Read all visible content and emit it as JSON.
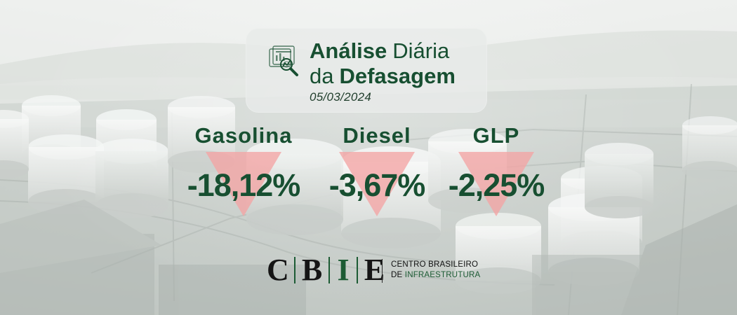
{
  "header": {
    "title_word_1": "Análise",
    "title_word_2": "Diária",
    "title_word_3": "da",
    "title_word_4": "Defasagem",
    "date": "05/03/2024",
    "icon": "analytics-report-icon"
  },
  "metrics": [
    {
      "fuel": "Gasolina",
      "value": "-18,12%",
      "indicator": "down-triangle-icon",
      "color": "#f4a4a4"
    },
    {
      "fuel": "Diesel",
      "value": "-3,67%",
      "indicator": "down-triangle-icon",
      "color": "#f4a4a4"
    },
    {
      "fuel": "GLP",
      "value": "-2,25%",
      "indicator": "down-triangle-icon",
      "color": "#f4a4a4"
    }
  ],
  "brand": {
    "letters": [
      "C",
      "B",
      "I",
      "E"
    ],
    "line_1": "CENTRO BRASILEIRO",
    "line_2_prefix": "DE",
    "line_2_accent": "INFRAESTRUTURA"
  },
  "colors": {
    "primary_green": "#174f31",
    "brand_green": "#1c5b34",
    "decline_red": "#f4a4a4",
    "background": "#d7dbd8"
  }
}
